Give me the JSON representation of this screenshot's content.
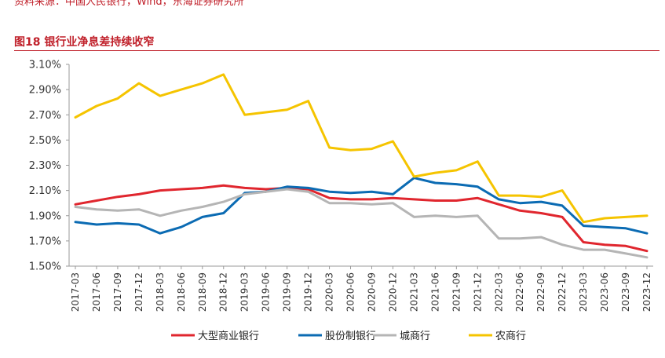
{
  "header": {
    "source_text": "资料来源：中国人民银行，Wind，东海证券研究所",
    "figure_title": "图18  银行业净息差持续收窄"
  },
  "colors": {
    "accent": "#c0202a",
    "series": [
      "#e0262e",
      "#0b6bb3",
      "#b5b5b5",
      "#f5c400"
    ]
  },
  "chart_data": {
    "type": "line",
    "title": "图18  银行业净息差持续收窄",
    "xlabel": "",
    "ylabel": "",
    "ylim": [
      1.5,
      3.1
    ],
    "yticks": [
      "1.50%",
      "1.70%",
      "1.90%",
      "2.10%",
      "2.30%",
      "2.50%",
      "2.70%",
      "2.90%",
      "3.10%"
    ],
    "ytick_values": [
      1.5,
      1.7,
      1.9,
      2.1,
      2.3,
      2.5,
      2.7,
      2.9,
      3.1
    ],
    "grid": false,
    "legend_position": "bottom",
    "categories": [
      "2017-03",
      "2017-06",
      "2017-09",
      "2017-12",
      "2018-03",
      "2018-06",
      "2018-09",
      "2018-12",
      "2019-03",
      "2019-06",
      "2019-09",
      "2019-12",
      "2020-03",
      "2020-06",
      "2020-09",
      "2020-12",
      "2021-03",
      "2021-06",
      "2021-09",
      "2021-12",
      "2022-03",
      "2022-06",
      "2022-09",
      "2022-12",
      "2023-03",
      "2023-06",
      "2023-09",
      "2023-12"
    ],
    "series": [
      {
        "name": "大型商业银行",
        "values": [
          1.99,
          2.02,
          2.05,
          2.07,
          2.1,
          2.11,
          2.12,
          2.14,
          2.12,
          2.11,
          2.12,
          2.11,
          2.04,
          2.03,
          2.03,
          2.04,
          2.03,
          2.02,
          2.02,
          2.04,
          1.99,
          1.94,
          1.92,
          1.89,
          1.69,
          1.67,
          1.66,
          1.62
        ]
      },
      {
        "name": "股份制银行",
        "values": [
          1.85,
          1.83,
          1.84,
          1.83,
          1.76,
          1.81,
          1.89,
          1.92,
          2.08,
          2.09,
          2.13,
          2.12,
          2.09,
          2.08,
          2.09,
          2.07,
          2.2,
          2.16,
          2.15,
          2.13,
          2.03,
          2.0,
          2.01,
          1.98,
          1.82,
          1.81,
          1.8,
          1.76
        ]
      },
      {
        "name": "城商行",
        "values": [
          1.97,
          1.95,
          1.94,
          1.95,
          1.9,
          1.94,
          1.97,
          2.01,
          2.07,
          2.09,
          2.11,
          2.09,
          2.0,
          2.0,
          1.99,
          2.0,
          1.89,
          1.9,
          1.89,
          1.9,
          1.72,
          1.72,
          1.73,
          1.67,
          1.63,
          1.63,
          1.6,
          1.57
        ]
      },
      {
        "name": "农商行",
        "values": [
          2.68,
          2.77,
          2.83,
          2.95,
          2.85,
          2.9,
          2.95,
          3.02,
          2.7,
          2.72,
          2.74,
          2.81,
          2.44,
          2.42,
          2.43,
          2.49,
          2.21,
          2.24,
          2.26,
          2.33,
          2.06,
          2.06,
          2.05,
          2.1,
          1.85,
          1.88,
          1.89,
          1.9
        ]
      }
    ]
  }
}
